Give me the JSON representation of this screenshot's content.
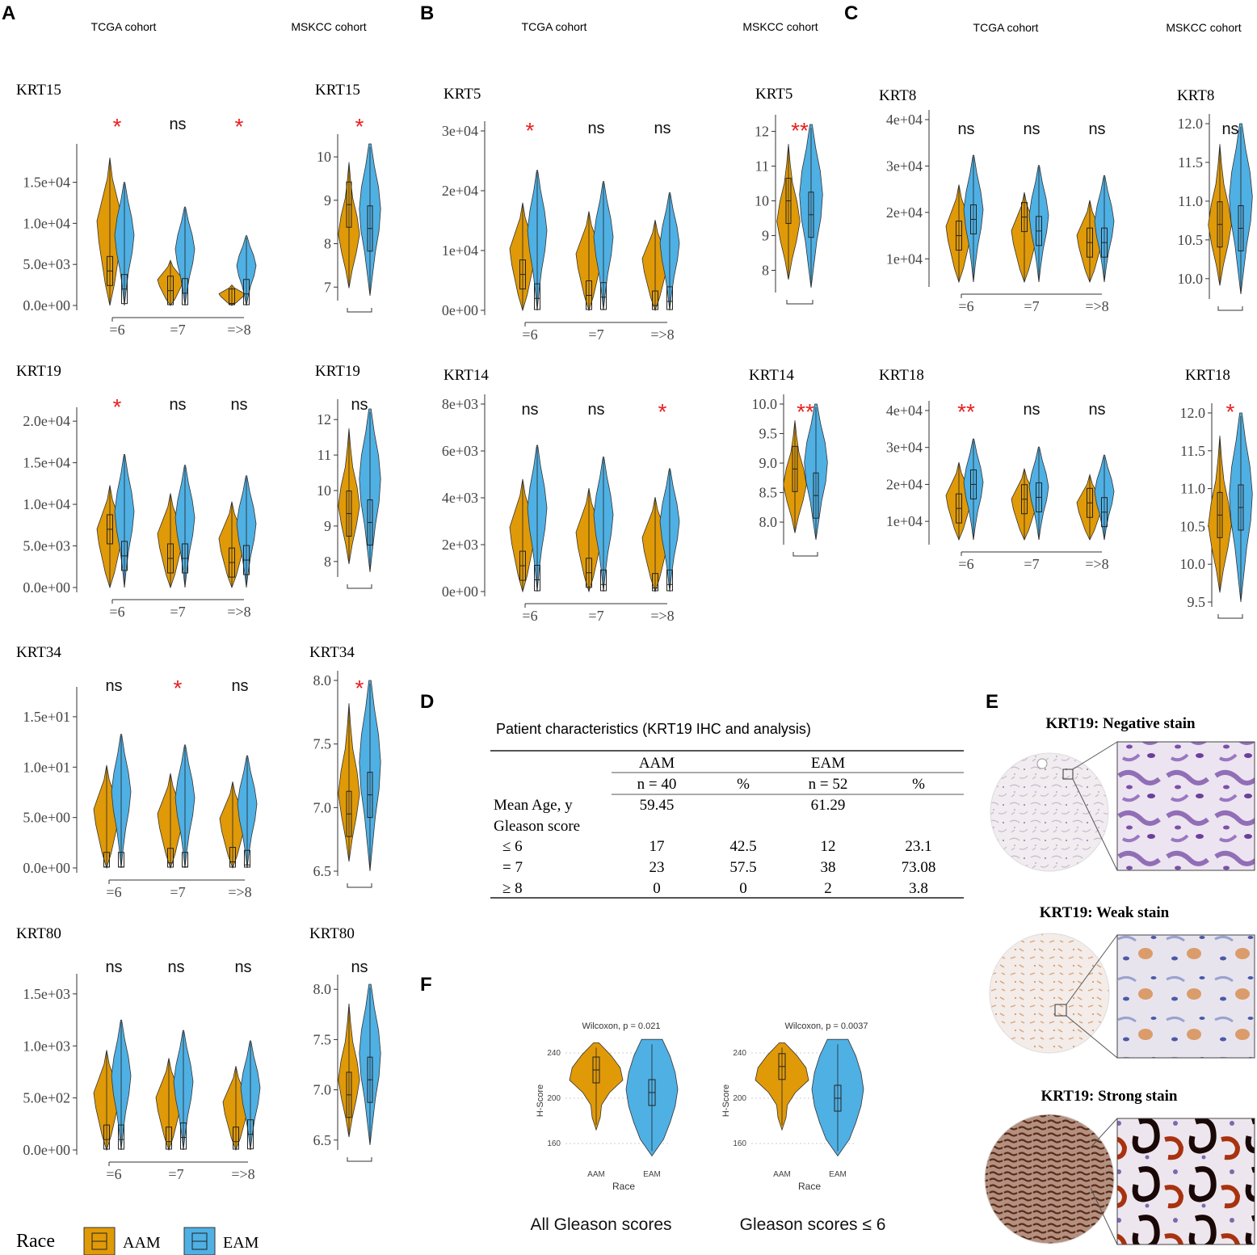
{
  "panel_letters": [
    "A",
    "B",
    "C",
    "D",
    "E",
    "F"
  ],
  "headers": [
    {
      "tcga": "TCGA cohort",
      "mskcc": "MSKCC cohort"
    },
    {
      "tcga": "TCGA cohort",
      "mskcc": "MSKCC cohort"
    },
    {
      "tcga": "TCGA cohort",
      "mskcc": "MSKCC cohort"
    }
  ],
  "colors": {
    "aam": "#E09A08",
    "eam": "#4FB0E4",
    "sig": "#E8201F"
  },
  "chart_data": [
    {
      "type": "violin",
      "gene": "KRT15",
      "cohort": "TCGA",
      "categories": [
        "=6",
        "=7",
        "=>8"
      ],
      "ticks": [
        "0.0e+00",
        "5.0e+03",
        "1.0e+04",
        "1.5e+04"
      ],
      "ylim": [
        0,
        18500
      ],
      "series": [
        {
          "name": "AAM",
          "medians": [
            4200,
            1800,
            250
          ],
          "maxima": [
            18000,
            5500,
            2500
          ]
        },
        {
          "name": "EAM",
          "medians": [
            2000,
            1500,
            1400
          ],
          "maxima": [
            15000,
            12000,
            8500
          ]
        }
      ],
      "significance": [
        "*",
        "ns",
        "*"
      ]
    },
    {
      "type": "violin",
      "gene": "KRT15",
      "cohort": "MSKCC",
      "ticks": [
        "7",
        "8",
        "9",
        "10"
      ],
      "ylim": [
        6.8,
        10.3
      ],
      "series": [
        {
          "name": "AAM",
          "median": 8.9
        },
        {
          "name": "EAM",
          "median": 8.35
        }
      ],
      "significance": "*"
    },
    {
      "type": "violin",
      "gene": "KRT19",
      "cohort": "TCGA",
      "categories": [
        "=6",
        "=7",
        "=>8"
      ],
      "ticks": [
        "0.0e+00",
        "5.0e+03",
        "1.0e+04",
        "1.5e+04",
        "2.0e+04"
      ],
      "ylim": [
        0,
        20500
      ],
      "series": [
        {
          "name": "AAM",
          "medians": [
            7000,
            3500,
            3000
          ]
        },
        {
          "name": "EAM",
          "medians": [
            3800,
            3500,
            3300
          ]
        }
      ],
      "significance": [
        "*",
        "ns",
        "ns"
      ]
    },
    {
      "type": "violin",
      "gene": "KRT19",
      "cohort": "MSKCC",
      "ticks": [
        "8",
        "9",
        "10",
        "11",
        "12"
      ],
      "ylim": [
        7.7,
        12.3
      ],
      "series": [
        {
          "name": "AAM",
          "median": 9.35
        },
        {
          "name": "EAM",
          "median": 9.1
        }
      ],
      "significance": "ns"
    },
    {
      "type": "violin",
      "gene": "KRT34",
      "cohort": "TCGA",
      "categories": [
        "=6",
        "=7",
        "=>8"
      ],
      "ticks": [
        "0.0e+00",
        "5.0e+00",
        "1.0e+01",
        "1.5e+01"
      ],
      "ylim": [
        0,
        17
      ],
      "series": [
        {
          "name": "AAM",
          "medians": [
            0.1,
            0.5,
            0.6
          ]
        },
        {
          "name": "EAM",
          "medians": [
            0.1,
            0.1,
            0.3
          ]
        }
      ],
      "significance": [
        "ns",
        "*",
        "ns"
      ]
    },
    {
      "type": "violin",
      "gene": "KRT34",
      "cohort": "MSKCC",
      "ticks": [
        "6.5",
        "7.0",
        "7.5",
        "8.0"
      ],
      "ylim": [
        6.5,
        8.0
      ],
      "series": [
        {
          "name": "AAM",
          "median": 6.95
        },
        {
          "name": "EAM",
          "median": 7.1
        }
      ],
      "significance": "*"
    },
    {
      "type": "violin",
      "gene": "KRT80",
      "cohort": "TCGA",
      "categories": [
        "=6",
        "=7",
        "=>8"
      ],
      "ticks": [
        "0.0e+00",
        "5.0e+02",
        "1.0e+03",
        "1.5e+03"
      ],
      "ylim": [
        0,
        1600
      ],
      "series": [
        {
          "name": "AAM",
          "medians": [
            100,
            80,
            80
          ]
        },
        {
          "name": "EAM",
          "medians": [
            100,
            120,
            150
          ]
        }
      ],
      "significance": [
        "ns",
        "ns",
        "ns"
      ]
    },
    {
      "type": "violin",
      "gene": "KRT80",
      "cohort": "MSKCC",
      "ticks": [
        "6.5",
        "7.0",
        "7.5",
        "8.0"
      ],
      "ylim": [
        6.45,
        8.05
      ],
      "series": [
        {
          "name": "AAM",
          "median": 6.95
        },
        {
          "name": "EAM",
          "median": 7.1
        }
      ],
      "significance": "ns"
    },
    {
      "type": "violin",
      "gene": "KRT5",
      "cohort": "TCGA",
      "categories": [
        "=6",
        "=7",
        "=>8"
      ],
      "ticks": [
        "0e+00",
        "1e+04",
        "2e+04",
        "3e+04"
      ],
      "ylim": [
        0,
        30000
      ],
      "series": [
        {
          "name": "AAM",
          "medians": [
            6000,
            2500,
            800
          ]
        },
        {
          "name": "EAM",
          "medians": [
            2000,
            2200,
            1500
          ]
        }
      ],
      "significance": [
        "*",
        "ns",
        "ns"
      ]
    },
    {
      "type": "violin",
      "gene": "KRT5",
      "cohort": "MSKCC",
      "ticks": [
        "8",
        "9",
        "10",
        "11",
        "12"
      ],
      "ylim": [
        7.5,
        12.2
      ],
      "series": [
        {
          "name": "AAM",
          "median": 10.0
        },
        {
          "name": "EAM",
          "median": 9.6
        }
      ],
      "significance": "**"
    },
    {
      "type": "violin",
      "gene": "KRT14",
      "cohort": "TCGA",
      "categories": [
        "=6",
        "=7",
        "=>8"
      ],
      "ticks": [
        "0e+00",
        "2e+03",
        "4e+03",
        "6e+03",
        "8e+03"
      ],
      "ylim": [
        0,
        8000
      ],
      "series": [
        {
          "name": "AAM",
          "medians": [
            1100,
            800,
            150
          ]
        },
        {
          "name": "EAM",
          "medians": [
            500,
            300,
            300
          ]
        }
      ],
      "significance": [
        "ns",
        "ns",
        "*"
      ]
    },
    {
      "type": "violin",
      "gene": "KRT14",
      "cohort": "MSKCC",
      "ticks": [
        "8.0",
        "8.5",
        "9.0",
        "9.5",
        "10.0"
      ],
      "ylim": [
        7.7,
        10.0
      ],
      "series": [
        {
          "name": "AAM",
          "median": 8.9
        },
        {
          "name": "EAM",
          "median": 8.45
        }
      ],
      "significance": "**"
    },
    {
      "type": "violin",
      "gene": "KRT8",
      "cohort": "TCGA",
      "categories": [
        "=6",
        "=7",
        "=>8"
      ],
      "ticks": [
        "1e+04",
        "2e+04",
        "3e+04",
        "4e+04"
      ],
      "ylim": [
        5000,
        40000
      ],
      "series": [
        {
          "name": "AAM",
          "medians": [
            15000,
            19000,
            13500
          ]
        },
        {
          "name": "EAM",
          "medians": [
            18500,
            16000,
            13500
          ]
        }
      ],
      "significance": [
        "ns",
        "ns",
        "ns"
      ]
    },
    {
      "type": "violin",
      "gene": "KRT8",
      "cohort": "MSKCC",
      "ticks": [
        "10.0",
        "10.5",
        "11.0",
        "11.5",
        "12.0"
      ],
      "ylim": [
        9.8,
        12.0
      ],
      "series": [
        {
          "name": "AAM",
          "median": 10.7
        },
        {
          "name": "EAM",
          "median": 10.65
        }
      ],
      "significance": "ns"
    },
    {
      "type": "violin",
      "gene": "KRT18",
      "cohort": "TCGA",
      "categories": [
        "=6",
        "=7",
        "=>8"
      ],
      "ticks": [
        "1e+04",
        "2e+04",
        "3e+04",
        "4e+04"
      ],
      "ylim": [
        5000,
        40000
      ],
      "series": [
        {
          "name": "AAM",
          "medians": [
            13500,
            16000,
            15000
          ]
        },
        {
          "name": "EAM",
          "medians": [
            20000,
            16500,
            12500
          ]
        }
      ],
      "significance": [
        "**",
        "ns",
        "ns"
      ]
    },
    {
      "type": "violin",
      "gene": "KRT18",
      "cohort": "MSKCC",
      "ticks": [
        "9.5",
        "10.0",
        "10.5",
        "11.0",
        "11.5",
        "12.0"
      ],
      "ylim": [
        9.5,
        12.0
      ],
      "series": [
        {
          "name": "AAM",
          "median": 10.65
        },
        {
          "name": "EAM",
          "median": 10.75
        }
      ],
      "significance": "*"
    },
    {
      "type": "violin",
      "gene": "KRT19",
      "panel": "F-left",
      "title": "Wilcoxon, p = 0.021",
      "ylabel": "H-Score",
      "xlabel": "Race",
      "categories": [
        "AAM",
        "EAM"
      ],
      "ticks": [
        "160",
        "200",
        "240"
      ],
      "ylim": [
        145,
        255
      ],
      "series": [
        {
          "name": "AAM",
          "median": 225
        },
        {
          "name": "EAM",
          "median": 205
        }
      ],
      "caption": "All Gleason scores"
    },
    {
      "type": "violin",
      "gene": "KRT19",
      "panel": "F-right",
      "title": "Wilcoxon, p = 0.0037",
      "ylabel": "H-Score",
      "xlabel": "Race",
      "categories": [
        "AAM",
        "EAM"
      ],
      "ticks": [
        "160",
        "200",
        "240"
      ],
      "ylim": [
        145,
        255
      ],
      "series": [
        {
          "name": "AAM",
          "median": 228
        },
        {
          "name": "EAM",
          "median": 200
        }
      ],
      "caption": "Gleason scores ≤ 6"
    }
  ],
  "legend": {
    "title": "Race",
    "items": [
      "AAM",
      "EAM"
    ]
  },
  "table": {
    "title": "Patient characteristics (KRT19 IHC and analysis)",
    "group_headers": [
      "AAM",
      "EAM"
    ],
    "sub_headers": [
      "n = 40",
      "%",
      "n = 52",
      "%"
    ],
    "rows": [
      {
        "label": "Mean Age, y",
        "cells": [
          "59.45",
          "",
          "61.29",
          ""
        ]
      },
      {
        "label": "Gleason score",
        "cells": [
          "",
          "",
          "",
          ""
        ]
      },
      {
        "label": "≤ 6",
        "cells": [
          "17",
          "42.5",
          "12",
          "23.1"
        ]
      },
      {
        "label": "= 7",
        "cells": [
          "23",
          "57.5",
          "38",
          "73.08"
        ]
      },
      {
        "label": "≥ 8",
        "cells": [
          "0",
          "0",
          "2",
          "3.8"
        ]
      }
    ]
  },
  "ihc": {
    "titles": [
      "KRT19: Negative stain",
      "KRT19: Weak stain",
      "KRT19: Strong stain"
    ]
  }
}
